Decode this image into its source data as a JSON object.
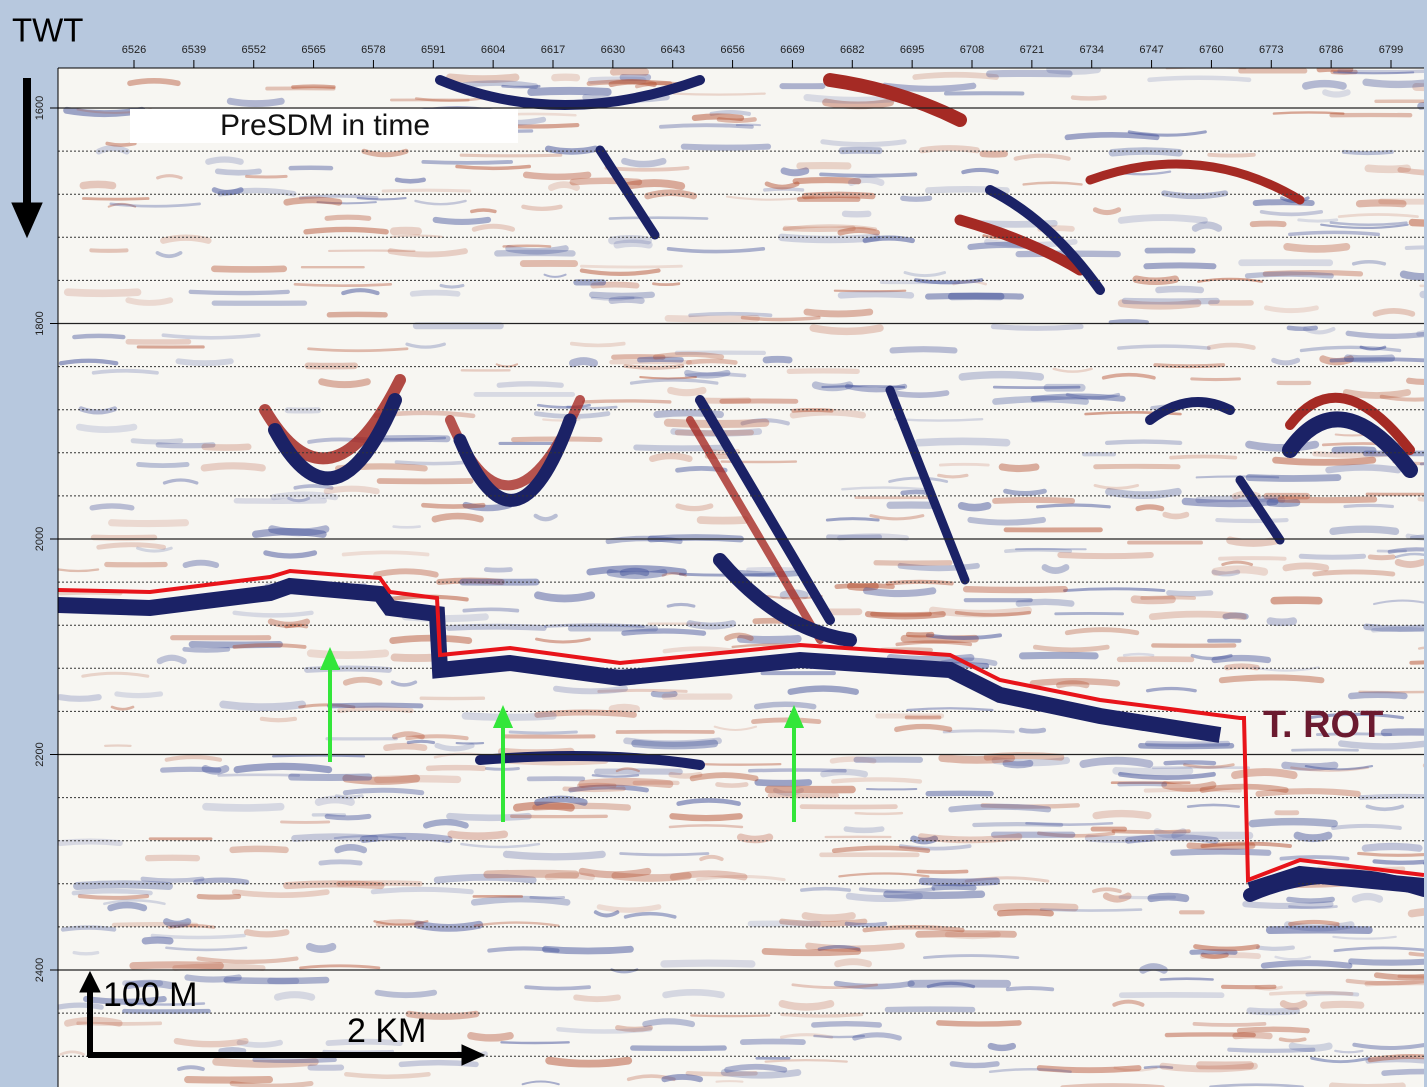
{
  "axis_title": "TWT",
  "x_ticks": [
    6526,
    6539,
    6552,
    6565,
    6578,
    6591,
    6604,
    6617,
    6630,
    6643,
    6656,
    6669,
    6682,
    6695,
    6708,
    6721,
    6734,
    6747,
    6760,
    6773,
    6786,
    6799
  ],
  "y_ticks": [
    1600,
    1800,
    2000,
    2200,
    2400
  ],
  "annotations": {
    "method": "PreSDM in time",
    "horizon": "T. ROT",
    "vertical_scale": "100 M",
    "horizontal_scale": "2 KM"
  }
}
